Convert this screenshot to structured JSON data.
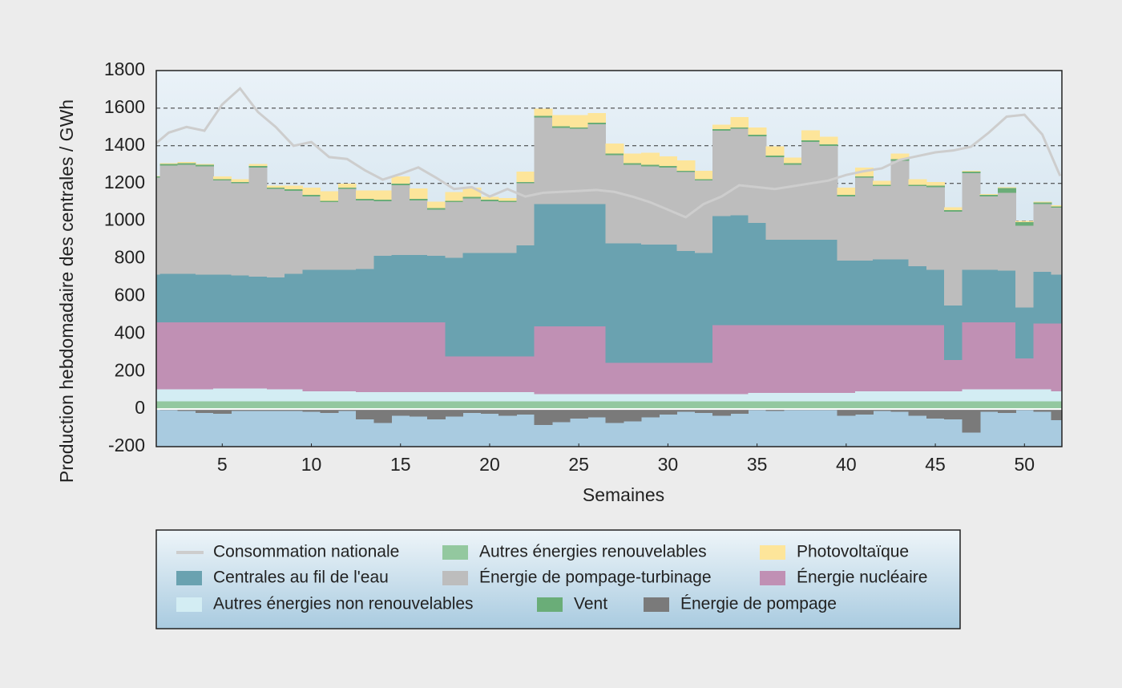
{
  "chart_data": {
    "type": "area",
    "y_label": "Production hebdomadaire des centrales / GWh",
    "x_label": "Semaines",
    "x": [
      1,
      2,
      3,
      4,
      5,
      6,
      7,
      8,
      9,
      10,
      11,
      12,
      13,
      14,
      15,
      16,
      17,
      18,
      19,
      20,
      21,
      22,
      23,
      24,
      25,
      26,
      27,
      28,
      29,
      30,
      31,
      32,
      33,
      34,
      35,
      36,
      37,
      38,
      39,
      40,
      41,
      42,
      43,
      44,
      45,
      46,
      47,
      48,
      49,
      50,
      51,
      52
    ],
    "xlim": [
      1.3,
      52.1
    ],
    "xticks": [
      5,
      10,
      15,
      20,
      25,
      30,
      35,
      40,
      45,
      50
    ],
    "ylim": [
      -200,
      1800
    ],
    "yticks": [
      -200,
      0,
      200,
      400,
      600,
      800,
      1000,
      1200,
      1400,
      1600,
      1800
    ],
    "grid": true,
    "stacked": true,
    "series": [
      {
        "name": "Consommation nationale",
        "type": "line",
        "color": "#cdcdcd",
        "values": [
          1390,
          1470,
          1500,
          1480,
          1620,
          1705,
          1580,
          1500,
          1400,
          1420,
          1340,
          1330,
          1270,
          1220,
          1250,
          1285,
          1230,
          1170,
          1180,
          1130,
          1170,
          1130,
          1150,
          1155,
          1160,
          1165,
          1155,
          1130,
          1100,
          1060,
          1020,
          1090,
          1130,
          1190,
          1180,
          1170,
          1185,
          1200,
          1215,
          1245,
          1265,
          1280,
          1325,
          1345,
          1365,
          1375,
          1395,
          1470,
          1555,
          1565,
          1460,
          1240
        ]
      },
      {
        "name": "Autres énergies renouvelables",
        "color": "#93c89f",
        "values": [
          40,
          40,
          40,
          40,
          40,
          40,
          40,
          40,
          40,
          40,
          40,
          40,
          40,
          40,
          40,
          40,
          40,
          40,
          40,
          40,
          40,
          40,
          40,
          40,
          40,
          40,
          40,
          40,
          40,
          40,
          40,
          40,
          40,
          40,
          40,
          40,
          40,
          40,
          40,
          40,
          40,
          40,
          40,
          40,
          40,
          40,
          40,
          40,
          40,
          40,
          40,
          40
        ]
      },
      {
        "name": "Photovoltaïque",
        "color": "#fde59a",
        "values": [
          2,
          5,
          5,
          5,
          15,
          15,
          10,
          10,
          20,
          40,
          50,
          20,
          45,
          50,
          40,
          55,
          35,
          45,
          50,
          15,
          15,
          55,
          40,
          60,
          65,
          50,
          55,
          50,
          65,
          50,
          55,
          45,
          25,
          55,
          40,
          50,
          30,
          55,
          40,
          40,
          45,
          20,
          30,
          30,
          20,
          15,
          5,
          5,
          5,
          5,
          5,
          5
        ]
      },
      {
        "name": "Centrales au fil de l'eau",
        "color": "#6aa2b0",
        "values": [
          255,
          260,
          260,
          255,
          255,
          250,
          245,
          240,
          260,
          280,
          280,
          280,
          285,
          355,
          360,
          360,
          355,
          525,
          550,
          550,
          550,
          590,
          650,
          650,
          650,
          650,
          635,
          635,
          630,
          630,
          595,
          585,
          580,
          585,
          545,
          455,
          455,
          455,
          455,
          345,
          345,
          350,
          350,
          315,
          295,
          290,
          280,
          280,
          275,
          270,
          275,
          260
        ]
      },
      {
        "name": "Énergie de pompage-turbinage",
        "color": "#bdbdbd",
        "values": [
          515,
          575,
          580,
          575,
          500,
          490,
          580,
          470,
          440,
          390,
          360,
          430,
          365,
          290,
          370,
          290,
          245,
          295,
          290,
          275,
          270,
          330,
          460,
          405,
          400,
          425,
          470,
          420,
          415,
          410,
          420,
          385,
          455,
          460,
          460,
          440,
          400,
          520,
          500,
          340,
          440,
          390,
          525,
          425,
          440,
          500,
          515,
          390,
          415,
          435,
          360,
          355
        ]
      },
      {
        "name": "Énergie nucléaire",
        "color": "#c090b4",
        "values": [
          355,
          355,
          355,
          355,
          350,
          350,
          350,
          355,
          355,
          365,
          365,
          365,
          370,
          370,
          370,
          370,
          370,
          190,
          190,
          190,
          190,
          190,
          360,
          360,
          360,
          360,
          165,
          165,
          165,
          165,
          165,
          165,
          365,
          365,
          360,
          360,
          360,
          360,
          360,
          360,
          350,
          350,
          350,
          350,
          350,
          165,
          355,
          355,
          355,
          165,
          350,
          360
        ]
      },
      {
        "name": "Autres énergies non renouvelables",
        "color": "#d3edf3",
        "values": [
          65,
          65,
          65,
          65,
          70,
          70,
          70,
          65,
          65,
          55,
          55,
          55,
          50,
          50,
          50,
          50,
          50,
          50,
          50,
          50,
          50,
          50,
          40,
          40,
          40,
          40,
          40,
          40,
          40,
          40,
          40,
          40,
          40,
          40,
          45,
          45,
          45,
          45,
          45,
          45,
          55,
          55,
          55,
          55,
          55,
          55,
          65,
          65,
          65,
          65,
          65,
          55
        ]
      },
      {
        "name": "Vent",
        "color": "#6aad78",
        "values": [
          8,
          8,
          8,
          8,
          8,
          8,
          8,
          8,
          8,
          8,
          8,
          8,
          8,
          8,
          8,
          8,
          8,
          8,
          8,
          8,
          8,
          8,
          8,
          8,
          8,
          8,
          8,
          8,
          8,
          8,
          8,
          8,
          8,
          8,
          8,
          8,
          8,
          8,
          8,
          8,
          8,
          8,
          8,
          8,
          8,
          8,
          8,
          8,
          25,
          20,
          8,
          8
        ]
      },
      {
        "name": "Énergie de pompage",
        "color": "#7a7a7a",
        "values": [
          0,
          -5,
          -10,
          -20,
          -25,
          -10,
          -10,
          -10,
          -10,
          -15,
          -20,
          -10,
          -55,
          -75,
          -35,
          -40,
          -55,
          -40,
          -20,
          -25,
          -35,
          -30,
          -85,
          -70,
          -50,
          -45,
          -75,
          -65,
          -45,
          -30,
          -15,
          -20,
          -35,
          -25,
          -5,
          -10,
          -5,
          -5,
          -5,
          -35,
          -30,
          -10,
          -15,
          -35,
          -50,
          -55,
          -125,
          -15,
          -20,
          -5,
          -15,
          -60
        ]
      }
    ]
  }
}
